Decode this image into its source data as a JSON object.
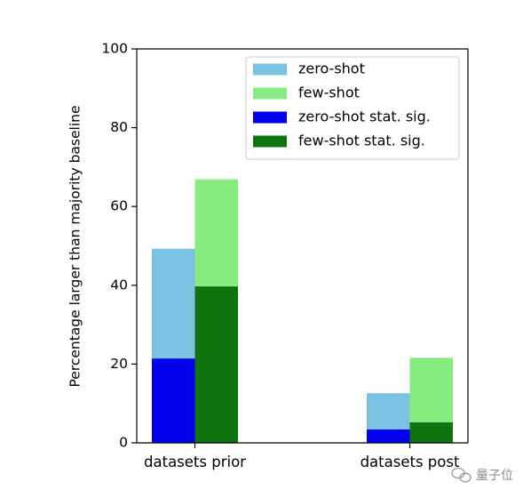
{
  "chart_data": {
    "type": "bar",
    "categories": [
      "datasets prior",
      "datasets post"
    ],
    "ylabel": "Percentage larger than majority baseline",
    "ylim": [
      0,
      100
    ],
    "yticks": [
      0,
      20,
      40,
      60,
      80,
      100
    ],
    "grid": false,
    "legend_position": "top-right",
    "series": [
      {
        "name": "zero-shot",
        "values": [
          49.3,
          12.6
        ],
        "color": "#7bc3e2"
      },
      {
        "name": "few-shot",
        "values": [
          66.9,
          21.6
        ],
        "color": "#87ec7f"
      },
      {
        "name": "zero-shot stat. sig.",
        "values": [
          21.4,
          3.4
        ],
        "color": "#0000ee"
      },
      {
        "name": "few-shot stat. sig.",
        "values": [
          39.7,
          5.2
        ],
        "color": "#0d7410"
      }
    ]
  },
  "watermark": {
    "text": "量子位"
  }
}
